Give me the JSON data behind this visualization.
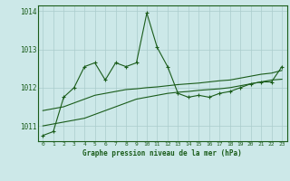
{
  "background_color": "#cce8e8",
  "grid_color": "#aacccc",
  "line_color": "#1a5c1a",
  "x_labels": [
    "0",
    "1",
    "2",
    "3",
    "4",
    "5",
    "6",
    "7",
    "8",
    "9",
    "10",
    "11",
    "12",
    "13",
    "14",
    "15",
    "16",
    "17",
    "18",
    "19",
    "20",
    "21",
    "22",
    "23"
  ],
  "yticks": [
    1011,
    1012,
    1013,
    1014
  ],
  "series1": [
    1010.75,
    1010.85,
    1011.75,
    1012.0,
    1012.55,
    1012.65,
    1012.2,
    1012.65,
    1012.55,
    1012.65,
    1013.95,
    1013.05,
    1012.55,
    1011.85,
    1011.75,
    1011.8,
    1011.75,
    1011.85,
    1011.9,
    1012.0,
    1012.1,
    1012.15,
    1012.15,
    1012.55
  ],
  "series2": [
    1011.0,
    1011.05,
    1011.1,
    1011.15,
    1011.2,
    1011.3,
    1011.4,
    1011.5,
    1011.6,
    1011.7,
    1011.75,
    1011.8,
    1011.85,
    1011.88,
    1011.9,
    1011.93,
    1011.95,
    1011.97,
    1012.0,
    1012.05,
    1012.1,
    1012.15,
    1012.2,
    1012.22
  ],
  "series3": [
    1011.4,
    1011.45,
    1011.5,
    1011.6,
    1011.7,
    1011.8,
    1011.85,
    1011.9,
    1011.95,
    1011.97,
    1012.0,
    1012.02,
    1012.05,
    1012.08,
    1012.1,
    1012.12,
    1012.15,
    1012.18,
    1012.2,
    1012.25,
    1012.3,
    1012.35,
    1012.38,
    1012.45
  ],
  "xlabel": "Graphe pression niveau de la mer (hPa)",
  "ylim": [
    1010.6,
    1014.15
  ]
}
